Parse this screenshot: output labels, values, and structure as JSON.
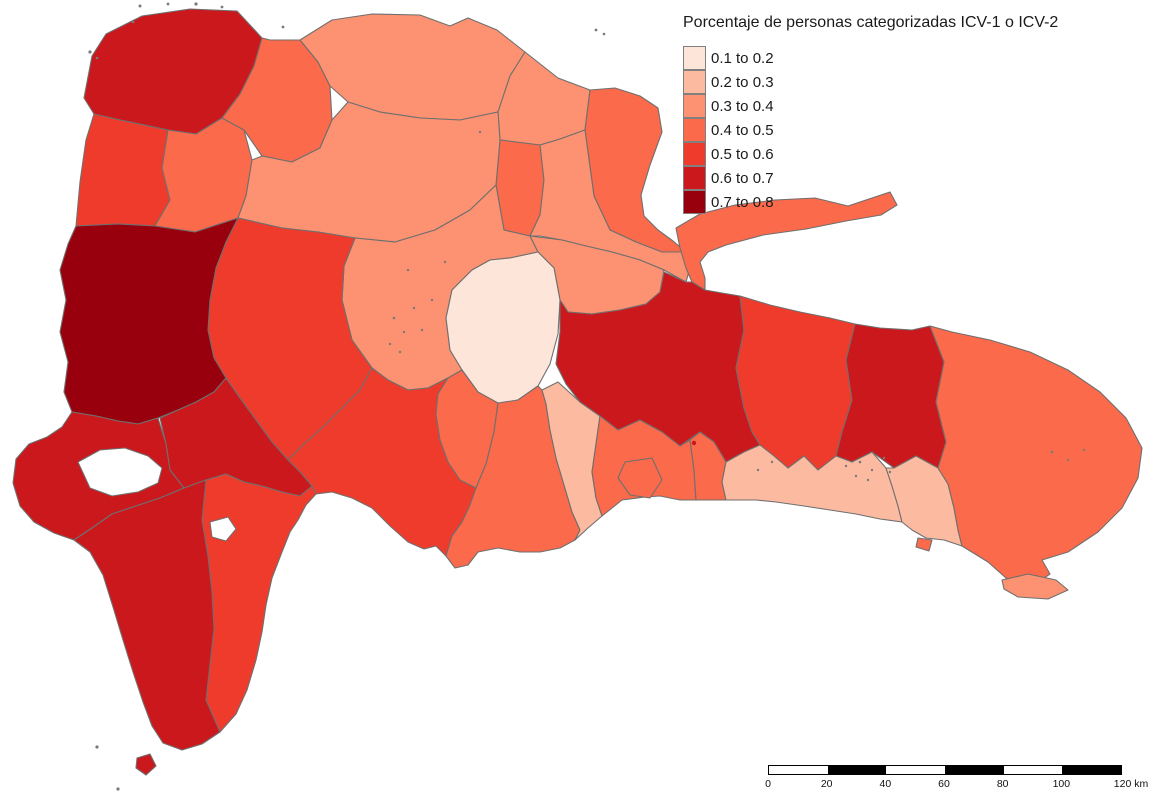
{
  "legend": {
    "title": "Porcentaje de personas categorizadas ICV-1 o ICV-2",
    "classes": [
      {
        "label": "0.1 to 0.2",
        "color": "#FEE5D9"
      },
      {
        "label": "0.2 to 0.3",
        "color": "#FCBBA1"
      },
      {
        "label": "0.3 to 0.4",
        "color": "#FC9272"
      },
      {
        "label": "0.4 to 0.5",
        "color": "#FB6A4A"
      },
      {
        "label": "0.5 to 0.6",
        "color": "#EF3B2C"
      },
      {
        "label": "0.6 to 0.7",
        "color": "#CB181D"
      },
      {
        "label": "0.7 to 0.8",
        "color": "#99000D"
      }
    ]
  },
  "map": {
    "border_color": "#6F6F6F",
    "water_color": "#FFFFFF",
    "regions": {
      "monte-cristi": "0.6 to 0.7",
      "dajabon": "0.5 to 0.6",
      "santiago-rodriguez": "0.4 to 0.5",
      "valverde": "0.4 to 0.5",
      "puerto-plata": "0.3 to 0.4",
      "espaillat": "0.3 to 0.4",
      "maria-trinidad-sanchez": "0.4 to 0.5",
      "hermanas-mirabal": "0.4 to 0.5",
      "duarte": "0.3 to 0.4",
      "samana": "0.4 to 0.5",
      "sanchez-ramirez": "0.3 to 0.4",
      "santiago": "0.3 to 0.4",
      "la-vega": "0.3 to 0.4",
      "monsenor-nouel": "0.1 to 0.2",
      "san-juan": "0.5 to 0.6",
      "elias-pina": "0.7 to 0.8",
      "azua": "0.5 to 0.6",
      "san-jose-de-ocoa": "0.4 to 0.5",
      "peravia": "0.4 to 0.5",
      "san-cristobal": "0.2 to 0.3",
      "santo-domingo-oeste": "0.4 to 0.5",
      "distrito-nacional": "0.4 to 0.5",
      "santo-domingo-este": "0.4 to 0.5",
      "monte-plata": "0.6 to 0.7",
      "hato-mayor": "0.5 to 0.6",
      "el-seibo": "0.6 to 0.7",
      "san-pedro-de-macoris": "0.2 to 0.3",
      "la-romana": "0.2 to 0.3",
      "la-altagracia": "0.4 to 0.5",
      "bahoruco": "0.6 to 0.7",
      "independencia": "0.6 to 0.7",
      "barahona": "0.5 to 0.6",
      "pedernales": "0.6 to 0.7",
      "isla-saona": "0.3 to 0.4",
      "isla-catalina": "0.4 to 0.5",
      "isla-beata": "0.6 to 0.7"
    }
  },
  "scale_bar": {
    "ticks": [
      "0",
      "20",
      "40",
      "60",
      "80",
      "100",
      "120"
    ],
    "unit": "km",
    "segment_colors": [
      "#FFFFFF",
      "#000000"
    ]
  }
}
